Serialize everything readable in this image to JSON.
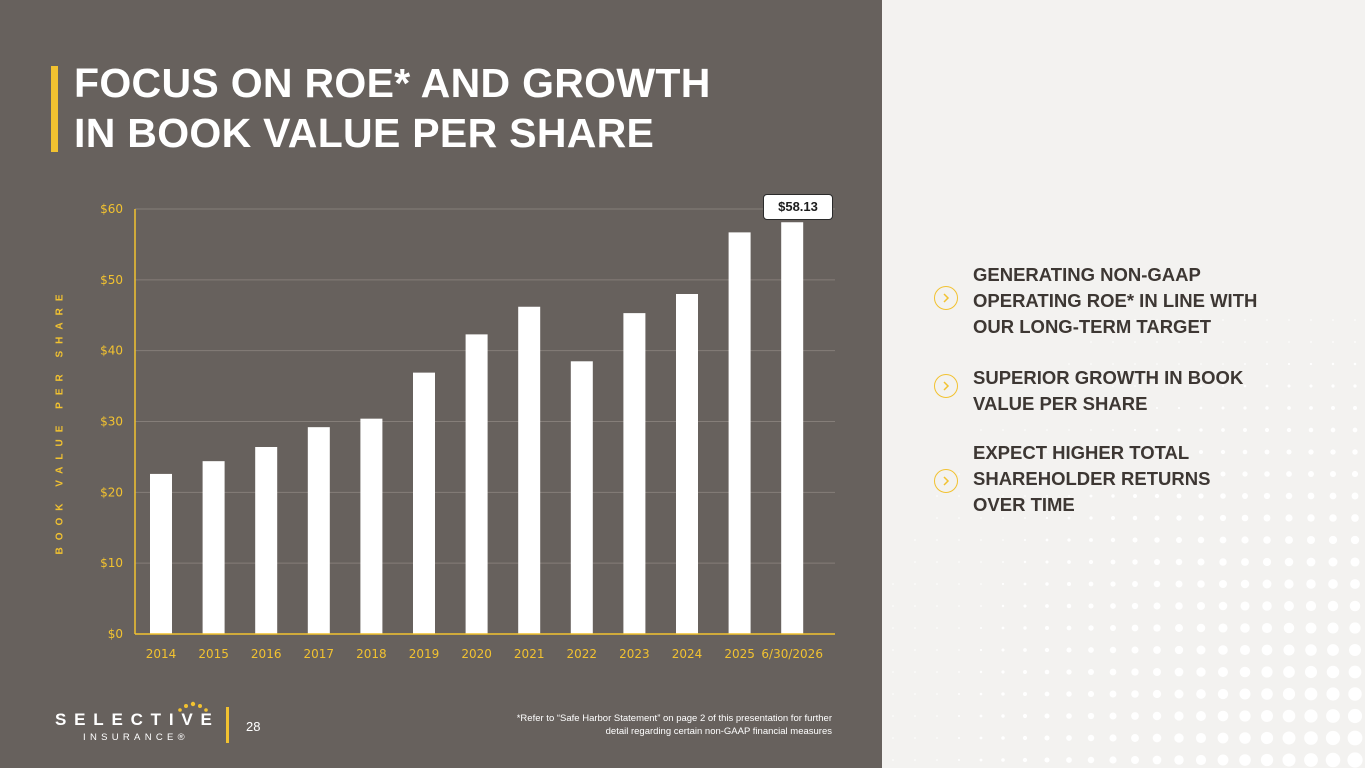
{
  "title": {
    "line1": "FOCUS ON ROE* AND GROWTH",
    "line2": "IN BOOK VALUE PER SHARE"
  },
  "chart_data": {
    "type": "bar",
    "ylabel": "BOOK VALUE PER SHARE",
    "xlabel": "",
    "categories": [
      "2014",
      "2015",
      "2016",
      "2017",
      "2018",
      "2019",
      "2020",
      "2021",
      "2022",
      "2023",
      "2024",
      "2025",
      "6/30/2026"
    ],
    "values": [
      22.6,
      24.4,
      26.4,
      29.2,
      30.4,
      36.9,
      42.3,
      46.2,
      38.5,
      45.3,
      48.0,
      56.7,
      58.13
    ],
    "yticks": [
      "$0",
      "$10",
      "$20",
      "$30",
      "$40",
      "$50",
      "$60"
    ],
    "ylim": [
      0,
      60
    ],
    "grid": true,
    "callout": "$58.13",
    "colors": {
      "bar": "#ffffff",
      "axis": "#f2c230",
      "grid": "#857e79",
      "tick_label": "#f2c230",
      "background": "#67615d"
    }
  },
  "bullets": [
    {
      "lines": [
        "GENERATING NON-GAAP",
        "OPERATING ROE* IN LINE WITH",
        "OUR LONG-TERM TARGET"
      ],
      "icon": "chevron-right-icon"
    },
    {
      "lines": [
        "SUPERIOR GROWTH IN BOOK",
        "VALUE PER SHARE"
      ],
      "icon": "chevron-right-icon"
    },
    {
      "lines": [
        "EXPECT HIGHER TOTAL",
        "SHAREHOLDER RETURNS",
        "OVER TIME"
      ],
      "icon": "chevron-right-icon"
    }
  ],
  "footer": {
    "logo_word": "SELECTIVE",
    "logo_sub": "INSURANCE®",
    "page_number": "28",
    "footnote_line1": "*Refer to “Safe Harbor Statement” on page 2 of this presentation for further",
    "footnote_line2": "detail regarding certain non-GAAP financial measures"
  },
  "colors": {
    "accent": "#f2c230",
    "dark_panel": "#67615d",
    "light_panel": "#f3f2f0",
    "bullet_text": "#3d3733"
  }
}
